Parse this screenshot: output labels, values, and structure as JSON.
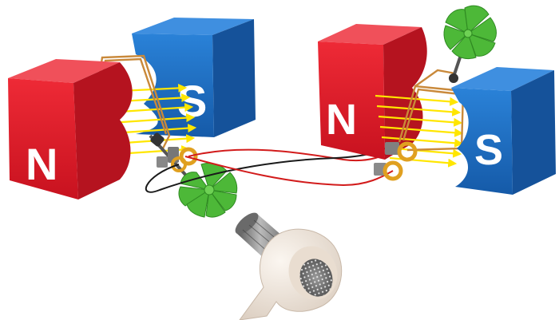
{
  "diagram": {
    "left_machine": {
      "north_label": "N",
      "south_label": "S",
      "role": "generator"
    },
    "right_machine": {
      "north_label": "N",
      "south_label": "S",
      "role": "motor"
    },
    "colors": {
      "north": "#e4212e",
      "north_side": "#b5131f",
      "north_top": "#f0505a",
      "south": "#1e6fc4",
      "south_side": "#15529a",
      "south_top": "#3f8fe0",
      "field_lines": "#ffe600",
      "wire_red": "#d21b1b",
      "wire_black": "#1a1a1a",
      "coil_copper": "#c9893a",
      "brush_ring": "#e0a020",
      "fan": "#4db838",
      "dryer_body": "#efe6dc"
    }
  }
}
